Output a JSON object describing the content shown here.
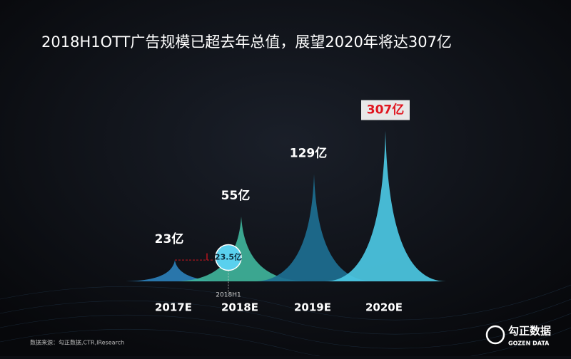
{
  "chart_data": {
    "type": "peak",
    "title": "2018H1OTT广告规模已超去年总值，展望2020年将达307亿",
    "categories": [
      "2017E",
      "2018E",
      "2019E",
      "2020E"
    ],
    "values": [
      23,
      55,
      129,
      307
    ],
    "value_labels": [
      "23亿",
      "55亿",
      "129亿",
      "307亿"
    ],
    "colors": [
      "#2b7fb8",
      "#3fb39a",
      "#1d6f91",
      "#4cc8e3"
    ],
    "log_scale": true,
    "ylim": [
      15,
      400
    ],
    "annotation": {
      "value": 23.5,
      "label": "23.5亿",
      "x_label": "2018H1"
    },
    "source": "数据来源：勾正数据,CTR,IResearch",
    "logo": {
      "name": "勾正数据",
      "subtitle": "GOZEN DATA"
    }
  }
}
